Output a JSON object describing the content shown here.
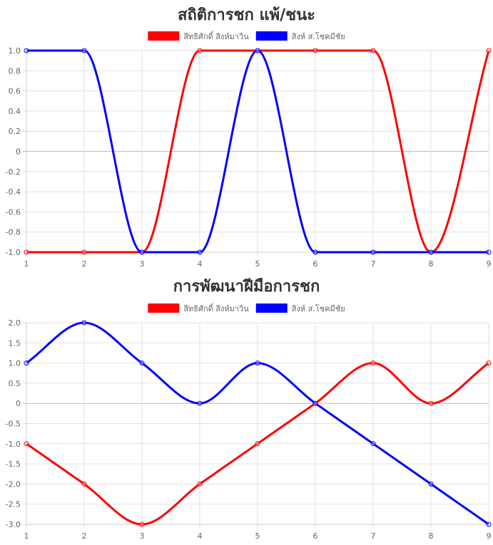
{
  "chart_data": [
    {
      "type": "line",
      "title": "สถิติการชก แพ้/ชนะ",
      "x": [
        "1",
        "2",
        "3",
        "4",
        "5",
        "6",
        "7",
        "8",
        "9"
      ],
      "series": [
        {
          "name": "สิทธิศักดิ์ สิงห์มาวิน",
          "color": "#ff0000",
          "values": [
            -1,
            -1,
            -1,
            1,
            1,
            1,
            1,
            -1,
            1
          ]
        },
        {
          "name": "สิงห์ ส.โชคมีชัย",
          "color": "#0000ff",
          "values": [
            1,
            1,
            -1,
            -1,
            1,
            -1,
            -1,
            -1,
            -1
          ]
        }
      ],
      "ylim": [
        -1,
        1
      ],
      "yticks": [
        "1.0",
        "0.8",
        "0.6",
        "0.4",
        "0.2",
        "0",
        "-0.2",
        "-0.4",
        "-0.6",
        "-0.8",
        "-1.0"
      ],
      "grid": true,
      "legend": "top-center"
    },
    {
      "type": "line",
      "title": "การพัฒนาฝีมือการชก",
      "x": [
        "1",
        "2",
        "3",
        "4",
        "5",
        "6",
        "7",
        "8",
        "9"
      ],
      "series": [
        {
          "name": "สิทธิศักดิ์ สิงห์มาวิน",
          "color": "#ff0000",
          "values": [
            -1,
            -2,
            -3,
            -2,
            -1,
            0,
            1,
            0,
            1
          ]
        },
        {
          "name": "สิงห์ ส.โชคมีชัย",
          "color": "#0000ff",
          "values": [
            1,
            2,
            1,
            0,
            1,
            0,
            -1,
            -2,
            -3
          ]
        }
      ],
      "ylim": [
        -3,
        2
      ],
      "yticks": [
        "2.0",
        "1.5",
        "1.0",
        "0.5",
        "0",
        "-0.5",
        "-1.0",
        "-1.5",
        "-2.0",
        "-2.5",
        "-3.0"
      ],
      "grid": true,
      "legend": "top-center"
    }
  ]
}
